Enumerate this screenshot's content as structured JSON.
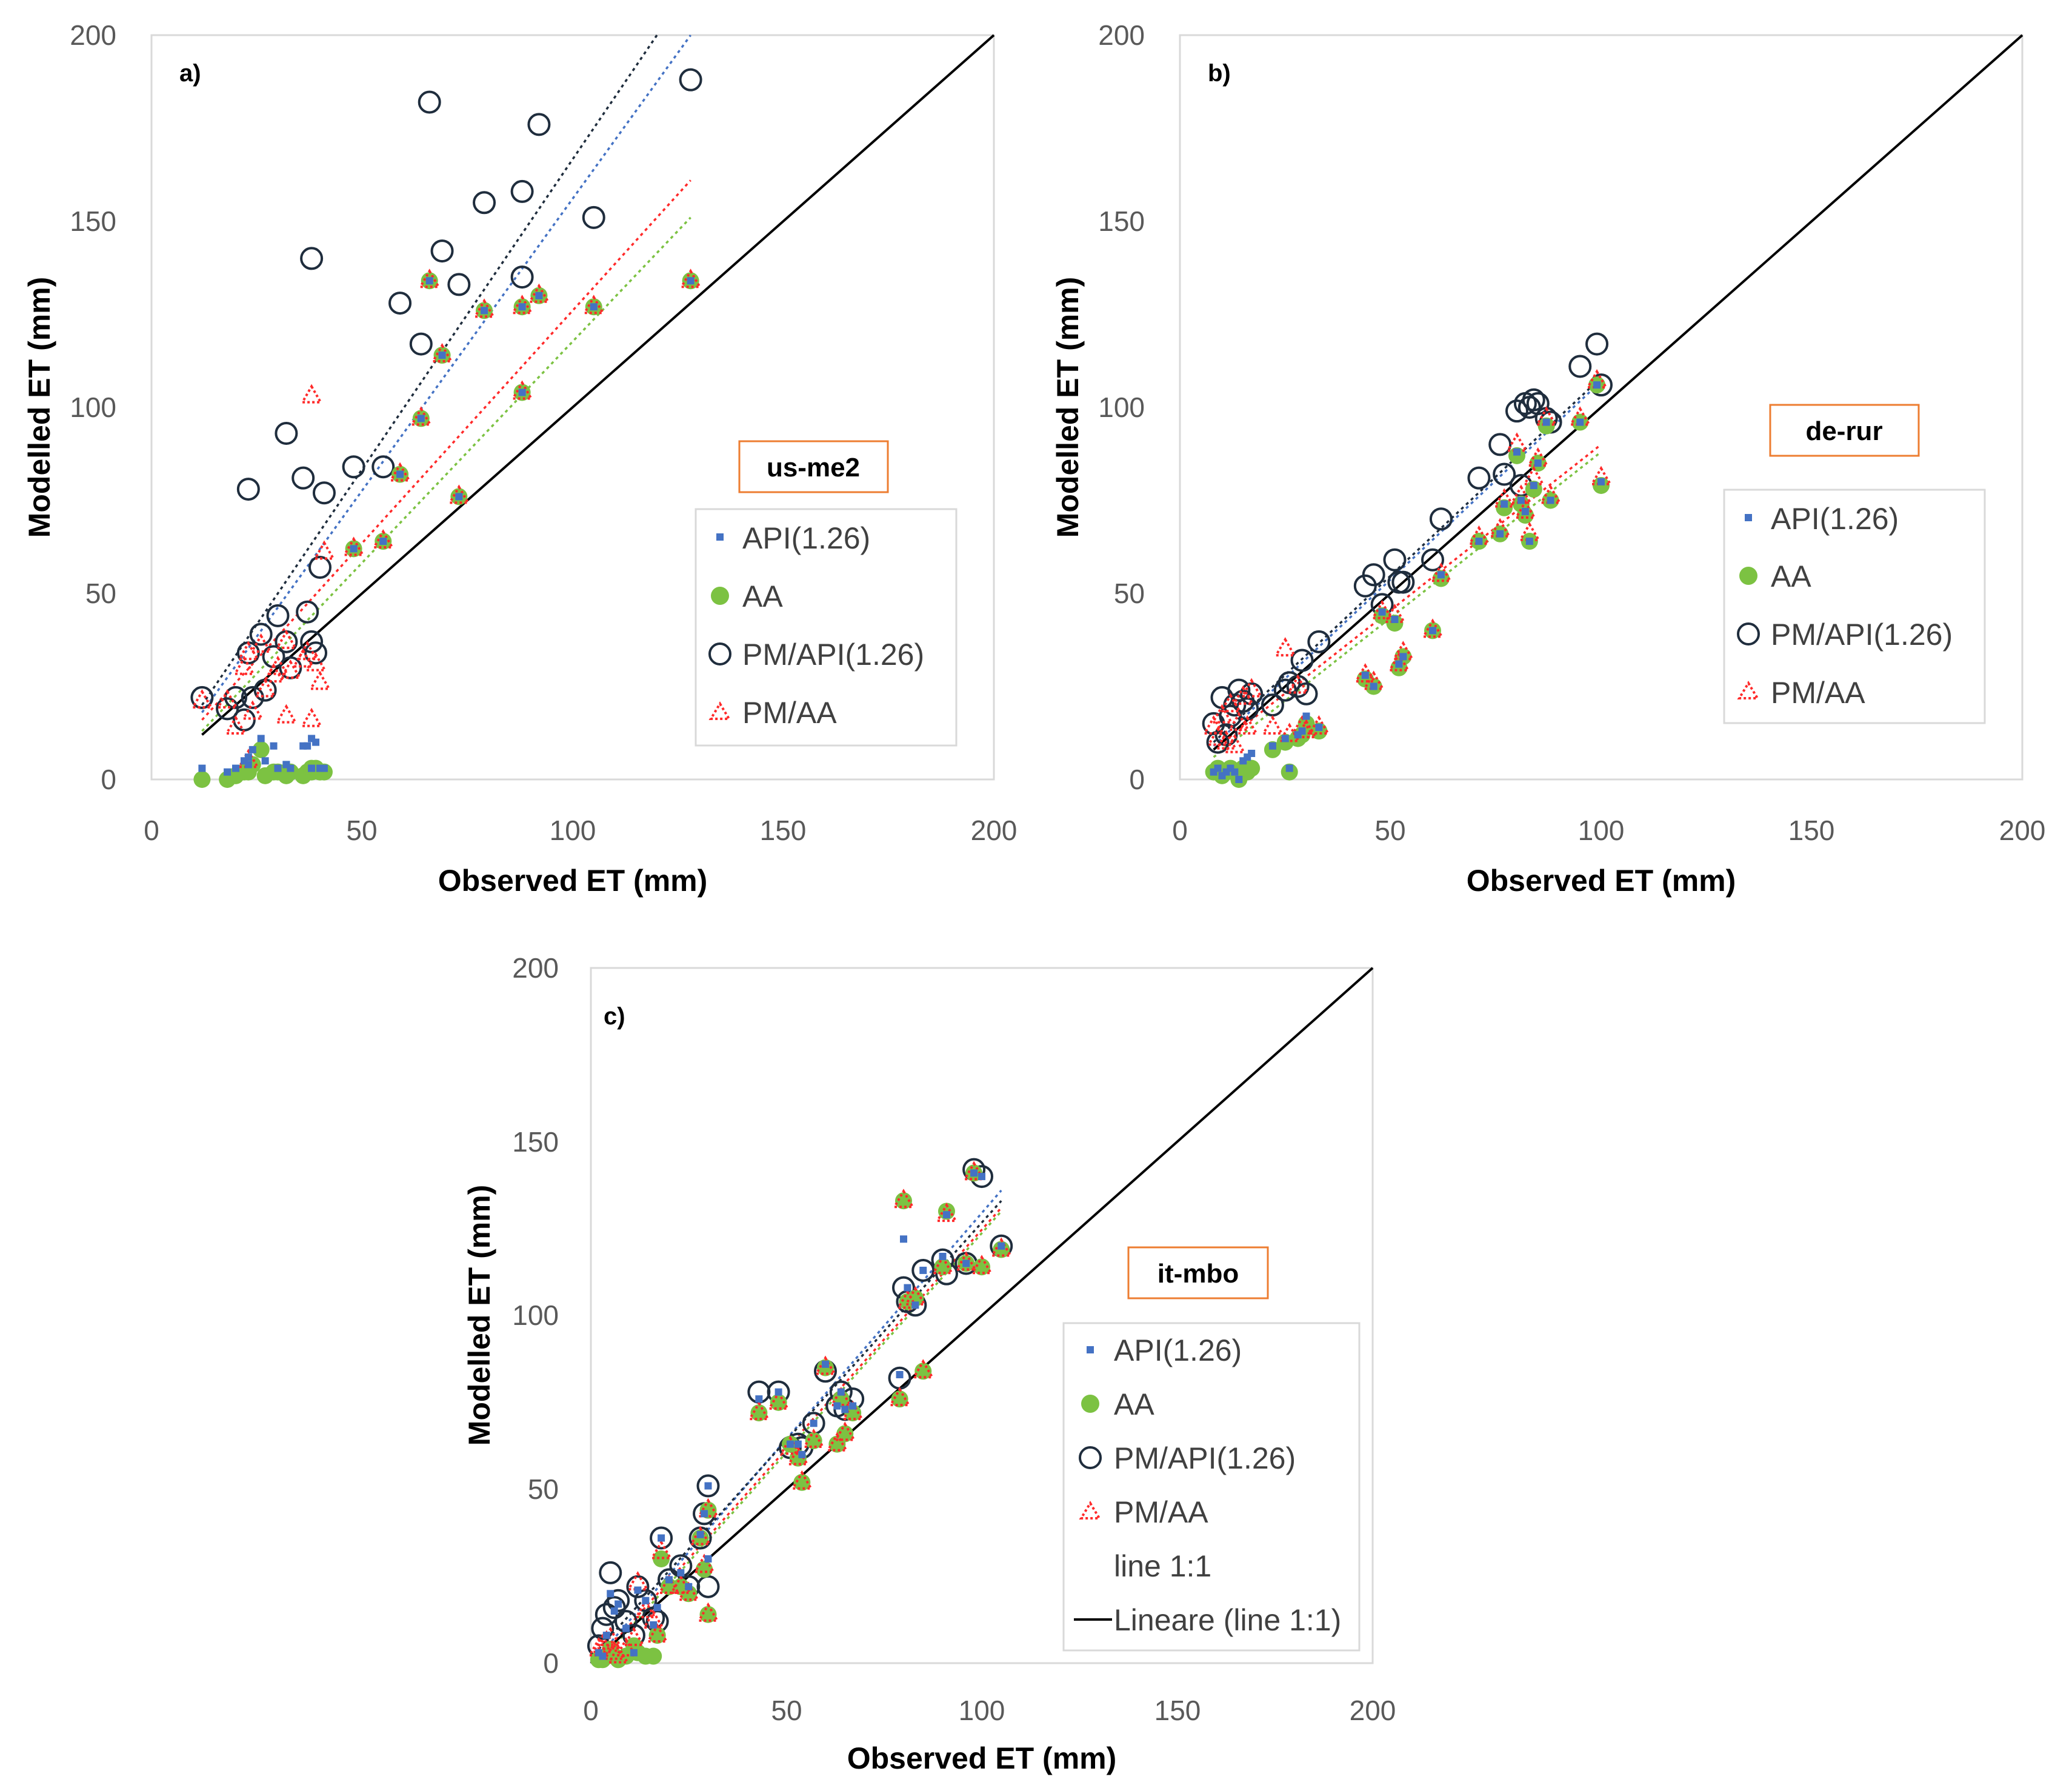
{
  "colors": {
    "api": "#4472c4",
    "aa": "#7cc242",
    "pm_api": "#1f2d3d",
    "pm_aa": "#ff2a2a",
    "line11": "#000000",
    "site_border": "#ed7d31",
    "frame": "#d9d9d9"
  },
  "chart_data": [
    {
      "type": "scatter",
      "panel": "a)",
      "site": "us-me2",
      "xlabel": "Observed ET (mm)",
      "ylabel": "Modelled ET (mm)",
      "xlim": [
        0,
        200
      ],
      "ylim": [
        0,
        200
      ],
      "xticks": [
        "0",
        "50",
        "100",
        "150",
        "200"
      ],
      "yticks": [
        "0",
        "50",
        "100",
        "150",
        "200"
      ],
      "legend": [
        "API(1.26)",
        "AA",
        "PM/API(1.26)",
        "PM/AA"
      ],
      "legend_position": "center-right",
      "x": [
        12,
        18,
        20,
        22,
        23,
        23,
        24,
        26,
        27,
        29,
        30,
        32,
        32,
        33,
        36,
        37,
        38,
        38,
        39,
        40,
        41,
        48,
        55,
        59,
        64,
        66,
        69,
        73,
        79,
        88,
        88,
        92,
        105,
        128
      ],
      "series": [
        {
          "name": "API(1.26)",
          "values": [
            3,
            2,
            3,
            5,
            6,
            4,
            8,
            11,
            5,
            9,
            3,
            4,
            4,
            3,
            9,
            9,
            3,
            11,
            10,
            3,
            3,
            62,
            64,
            82,
            97,
            134,
            114,
            76,
            126,
            104,
            127,
            130,
            127,
            134
          ]
        },
        {
          "name": "AA",
          "values": [
            0,
            0,
            1,
            2,
            3,
            2,
            4,
            8,
            1,
            2,
            2,
            2,
            1,
            2,
            1,
            2,
            2,
            3,
            3,
            2,
            2,
            62,
            64,
            82,
            97,
            134,
            114,
            76,
            126,
            104,
            127,
            130,
            127,
            134
          ]
        },
        {
          "name": "PM/API(1.26)",
          "values": [
            22,
            19,
            22,
            16,
            78,
            34,
            22,
            39,
            24,
            33,
            44,
            93,
            37,
            30,
            81,
            45,
            140,
            37,
            34,
            57,
            77,
            84,
            84,
            128,
            117,
            182,
            142,
            133,
            155,
            135,
            158,
            176,
            151,
            188
          ]
        },
        {
          "name": "PM/AA",
          "values": [
            21,
            21,
            14,
            30,
            34,
            5,
            18,
            36,
            24,
            28,
            30,
            37,
            17,
            29,
            32,
            34,
            103,
            16,
            31,
            26,
            61,
            62,
            64,
            82,
            97,
            134,
            114,
            76,
            126,
            104,
            127,
            130,
            127,
            134
          ]
        }
      ],
      "trendlines": [
        {
          "name": "PM/API(1.26)",
          "color_key": "pm_api",
          "from": [
            12,
            20
          ],
          "to": [
            120,
            200
          ]
        },
        {
          "name": "API(1.26)",
          "color_key": "api",
          "from": [
            12,
            18
          ],
          "to": [
            128,
            200
          ]
        },
        {
          "name": "PM/AA",
          "color_key": "pm_aa",
          "from": [
            12,
            16
          ],
          "to": [
            128,
            161
          ]
        },
        {
          "name": "AA",
          "color_key": "aa",
          "from": [
            12,
            13
          ],
          "to": [
            128,
            151
          ]
        },
        {
          "name": "line 1:1",
          "color_key": "line11",
          "from": [
            12,
            12
          ],
          "to": [
            200,
            200
          ],
          "solid": true
        }
      ]
    },
    {
      "type": "scatter",
      "panel": "b)",
      "site": "de-rur",
      "xlabel": "Observed ET (mm)",
      "ylabel": "Modelled ET (mm)",
      "xlim": [
        0,
        200
      ],
      "ylim": [
        0,
        200
      ],
      "xticks": [
        "0",
        "50",
        "100",
        "150",
        "200"
      ],
      "yticks": [
        "0",
        "50",
        "100",
        "150",
        "200"
      ],
      "legend": [
        "API(1.26)",
        "AA",
        "PM/API(1.26)",
        "PM/AA"
      ],
      "legend_position": "center-right",
      "x": [
        8,
        9,
        10,
        11,
        12,
        13,
        14,
        15,
        16,
        17,
        22,
        25,
        26,
        28,
        29,
        30,
        33,
        44,
        46,
        48,
        51,
        52,
        53,
        60,
        62,
        71,
        76,
        77,
        80,
        81,
        82,
        83,
        84,
        85,
        87,
        88,
        95,
        99,
        100
      ],
      "series": [
        {
          "name": "API(1.26)",
          "values": [
            2,
            3,
            1,
            2,
            3,
            2,
            0,
            5,
            6,
            7,
            9,
            11,
            3,
            12,
            13,
            17,
            14,
            28,
            25,
            45,
            43,
            31,
            33,
            40,
            55,
            64,
            66,
            74,
            88,
            75,
            72,
            64,
            79,
            85,
            96,
            75,
            96,
            106,
            80
          ]
        },
        {
          "name": "AA",
          "values": [
            2,
            3,
            1,
            2,
            3,
            2,
            0,
            3,
            2,
            3,
            8,
            10,
            2,
            11,
            12,
            15,
            13,
            27,
            25,
            44,
            42,
            30,
            33,
            40,
            54,
            64,
            66,
            73,
            87,
            74,
            71,
            64,
            78,
            85,
            95,
            75,
            96,
            106,
            79
          ]
        },
        {
          "name": "PM/API(1.26)",
          "values": [
            15,
            10,
            22,
            12,
            17,
            20,
            24,
            21,
            19,
            23,
            20,
            24,
            26,
            25,
            32,
            23,
            37,
            52,
            55,
            47,
            59,
            53,
            53,
            59,
            70,
            81,
            90,
            82,
            99,
            79,
            101,
            100,
            102,
            101,
            97,
            96,
            111,
            117,
            106
          ]
        },
        {
          "name": "PM/AA",
          "values": [
            14,
            11,
            17,
            10,
            20,
            9,
            15,
            22,
            14,
            24,
            14,
            35,
            12,
            25,
            14,
            13,
            14,
            28,
            26,
            45,
            44,
            31,
            34,
            40,
            55,
            65,
            67,
            75,
            90,
            76,
            72,
            66,
            81,
            86,
            97,
            76,
            97,
            107,
            81
          ]
        }
      ],
      "trendlines": [
        {
          "name": "PM/API(1.26)",
          "color_key": "pm_api",
          "from": [
            8,
            10
          ],
          "to": [
            100,
            108
          ]
        },
        {
          "name": "API(1.26)",
          "color_key": "api",
          "from": [
            8,
            9
          ],
          "to": [
            100,
            107
          ]
        },
        {
          "name": "PM/AA",
          "color_key": "pm_aa",
          "from": [
            8,
            8
          ],
          "to": [
            100,
            90
          ]
        },
        {
          "name": "AA",
          "color_key": "aa",
          "from": [
            8,
            6
          ],
          "to": [
            100,
            88
          ]
        },
        {
          "name": "line 1:1",
          "color_key": "line11",
          "from": [
            8,
            8
          ],
          "to": [
            200,
            200
          ],
          "solid": true
        }
      ]
    },
    {
      "type": "scatter",
      "panel": "c)",
      "site": "it-mbo",
      "xlabel": "Observed ET (mm)",
      "ylabel": "Modelled ET (mm)",
      "xlim": [
        0,
        200
      ],
      "ylim": [
        0,
        200
      ],
      "xticks": [
        "0",
        "50",
        "100",
        "150",
        "200"
      ],
      "yticks": [
        "0",
        "50",
        "100",
        "150",
        "200"
      ],
      "legend": [
        "API(1.26)",
        "AA",
        "PM/API(1.26)",
        "PM/AA",
        "line 1:1",
        "Lineare (line 1:1)"
      ],
      "legend_position": "center-right",
      "x": [
        2,
        3,
        4,
        5,
        6,
        7,
        9,
        11,
        12,
        14,
        16,
        17,
        18,
        20,
        23,
        25,
        28,
        29,
        30,
        30,
        43,
        48,
        51,
        53,
        54,
        57,
        60,
        63,
        64,
        65,
        67,
        79,
        80,
        81,
        83,
        85,
        90,
        91,
        96,
        98,
        100,
        105
      ],
      "series": [
        {
          "name": "API(1.26)",
          "values": [
            3,
            2,
            8,
            20,
            15,
            17,
            10,
            3,
            21,
            18,
            11,
            16,
            36,
            24,
            26,
            22,
            37,
            43,
            30,
            51,
            76,
            78,
            63,
            63,
            60,
            69,
            86,
            74,
            78,
            73,
            74,
            83,
            122,
            108,
            103,
            113,
            117,
            129,
            115,
            141,
            140,
            120
          ]
        },
        {
          "name": "AA",
          "values": [
            1,
            1,
            2,
            4,
            2,
            1,
            2,
            5,
            3,
            2,
            2,
            8,
            30,
            22,
            22,
            20,
            36,
            27,
            14,
            44,
            72,
            75,
            63,
            59,
            52,
            64,
            85,
            63,
            76,
            66,
            72,
            76,
            133,
            104,
            105,
            84,
            114,
            130,
            115,
            141,
            114,
            119
          ]
        },
        {
          "name": "PM/API(1.26)",
          "values": [
            5,
            10,
            14,
            26,
            16,
            18,
            12,
            8,
            22,
            18,
            13,
            12,
            36,
            24,
            28,
            22,
            36,
            43,
            22,
            51,
            78,
            78,
            62,
            63,
            62,
            69,
            84,
            74,
            78,
            73,
            76,
            82,
            108,
            104,
            103,
            113,
            116,
            112,
            115,
            142,
            140,
            120
          ]
        },
        {
          "name": "PM/AA",
          "values": [
            4,
            5,
            6,
            7,
            3,
            2,
            4,
            7,
            23,
            15,
            12,
            8,
            32,
            22,
            22,
            20,
            36,
            28,
            14,
            44,
            72,
            75,
            62,
            59,
            52,
            64,
            85,
            63,
            76,
            66,
            72,
            76,
            133,
            104,
            105,
            84,
            114,
            129,
            115,
            141,
            114,
            119
          ]
        }
      ],
      "trendlines": [
        {
          "name": "API(1.26)",
          "color_key": "api",
          "from": [
            2,
            2
          ],
          "to": [
            105,
            136
          ]
        },
        {
          "name": "PM/API(1.26)",
          "color_key": "pm_api",
          "from": [
            2,
            4
          ],
          "to": [
            105,
            133
          ]
        },
        {
          "name": "PM/AA",
          "color_key": "pm_aa",
          "from": [
            2,
            1
          ],
          "to": [
            105,
            131
          ]
        },
        {
          "name": "AA",
          "color_key": "aa",
          "from": [
            2,
            0
          ],
          "to": [
            105,
            130
          ]
        },
        {
          "name": "line 1:1",
          "color_key": "line11",
          "from": [
            0,
            0
          ],
          "to": [
            200,
            200
          ],
          "solid": true
        }
      ]
    }
  ]
}
